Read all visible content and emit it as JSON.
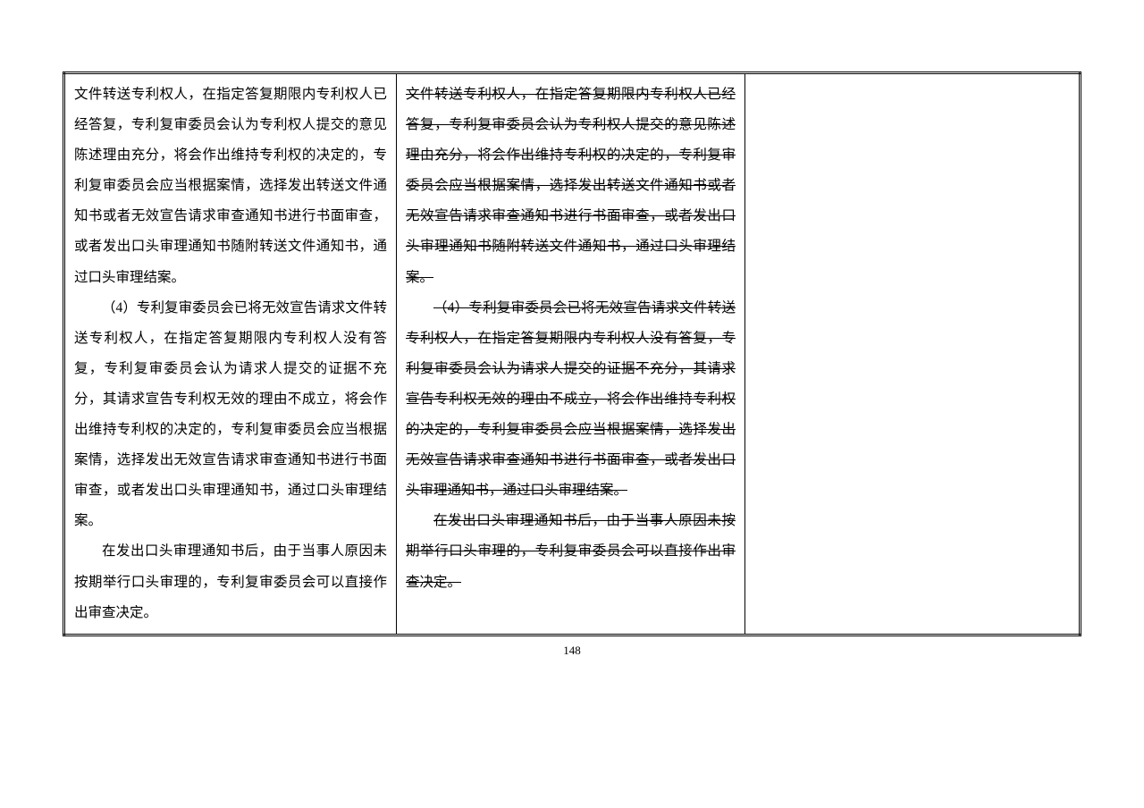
{
  "page_number": "148",
  "columns": {
    "left": {
      "part1": "文件转送专利权人，在指定答复期限内专利权人已经答复，专利复审委员会认为专利权人提交的意见陈述理由充分，将会作出维持专利权的决定的，专利复审委员会应当根据案情，选择发出转送文件通知书或者无效宣告请求审查通知书进行书面审查，或者发出口头审理通知书随附转送文件通知书，通过口头审理结案。",
      "part2": "（4）专利复审委员会已将无效宣告请求文件转送专利权人，在指定答复期限内专利权人没有答复，专利复审委员会认为请求人提交的证据不充分，其请求宣告专利权无效的理由不成立，将会作出维持专利权的决定的，专利复审委员会应当根据案情，选择发出无效宣告请求审查通知书进行书面审查，或者发出口头审理通知书，通过口头审理结案。",
      "part3": "在发出口头审理通知书后，由于当事人原因未按期举行口头审理的，专利复审委员会可以直接作出审查决定。"
    },
    "middle": {
      "part1": "文件转送专利权人，在指定答复期限内专利权人已经答复，专利复审委员会认为专利权人提交的意见陈述理由充分，将会作出维持专利权的决定的，专利复审委员会应当根据案情，选择发出转送文件通知书或者无效宣告请求审查通知书进行书面审查，或者发出口头审理通知书随附转送文件通知书，通过口头审理结案。",
      "part2": "（4）专利复审委员会已将无效宣告请求文件转送专利权人，在指定答复期限内专利权人没有答复，专利复审委员会认为请求人提交的证据不充分，其请求宣告专利权无效的理由不成立，将会作出维持专利权的决定的，专利复审委员会应当根据案情，选择发出无效宣告请求审查通知书进行书面审查，或者发出口头审理通知书，通过口头审理结案。",
      "part3": "在发出口头审理通知书后，由于当事人原因未按期举行口头审理的，专利复审委员会可以直接作出审查决定。"
    }
  },
  "style": {
    "font_size_pt": 12,
    "line_height": 2.2,
    "text_color": "#000000",
    "background_color": "#ffffff",
    "border_color": "#000000"
  }
}
